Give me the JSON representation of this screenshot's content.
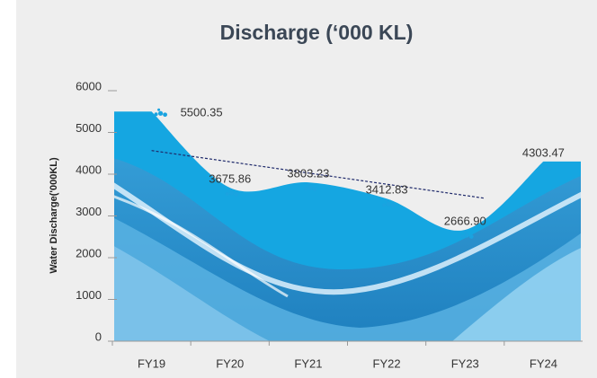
{
  "chart_data": {
    "type": "area",
    "title": "Discharge (‘000 KL)",
    "y_label": "Water Discharge('000KL)",
    "categories": [
      "FY19",
      "FY20",
      "FY21",
      "FY22",
      "FY23",
      "FY24"
    ],
    "values": [
      5500.35,
      3675.86,
      3803.23,
      3412.83,
      2666.9,
      4303.47
    ],
    "value_labels": [
      "5500.35",
      "3675.86",
      "3803.23",
      "3412.83",
      "2666.90",
      "4303.47"
    ],
    "color": "#15a6e1",
    "trend_color": "#1f2a6b",
    "trendline": true,
    "ylim": [
      0,
      6000
    ],
    "yticks": [
      0,
      1000,
      2000,
      3000,
      4000,
      5000,
      6000
    ]
  }
}
